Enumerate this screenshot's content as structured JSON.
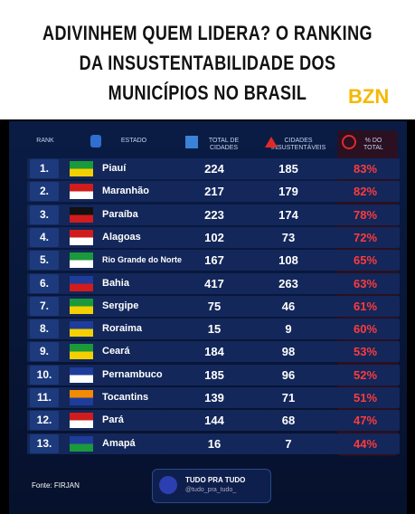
{
  "header": {
    "title": [
      "ADIVINHEM QUEM LIDERA? O RANKING",
      "DA INSUSTENTABILIDADE DOS",
      "MUNICÍPIOS NO BRASIL"
    ],
    "logo": "BZN"
  },
  "table": {
    "columns": [
      "RANK",
      "ESTADO",
      "TOTAL DE CIDADES",
      "CIDADES INSUSTENTÁVEIS",
      "% DO TOTAL"
    ],
    "rows": [
      [
        "1.",
        "Piauí",
        "224",
        "185",
        "83%"
      ],
      [
        "2.",
        "Maranhão",
        "217",
        "179",
        "82%"
      ],
      [
        "3.",
        "Paraíba",
        "223",
        "174",
        "78%"
      ],
      [
        "4.",
        "Alagoas",
        "102",
        "73",
        "72%"
      ],
      [
        "5.",
        "Rio Grande do Norte",
        "167",
        "108",
        "65%"
      ],
      [
        "6.",
        "Bahia",
        "417",
        "263",
        "63%"
      ],
      [
        "7.",
        "Sergipe",
        "75",
        "46",
        "61%"
      ],
      [
        "8.",
        "Roraima",
        "15",
        "9",
        "60%"
      ],
      [
        "9.",
        "Ceará",
        "184",
        "98",
        "53%"
      ],
      [
        "10.",
        "Pernambuco",
        "185",
        "96",
        "52%"
      ],
      [
        "11.",
        "Tocantins",
        "139",
        "71",
        "51%"
      ],
      [
        "12.",
        "Pará",
        "144",
        "68",
        "47%"
      ],
      [
        "13.",
        "Amapá",
        "16",
        "7",
        "44%"
      ]
    ]
  },
  "footer": {
    "source": "Fonte: FIRJAN",
    "brand": "TUDO PRA TUDO",
    "handle": "@tudo_pra_tudo_"
  }
}
